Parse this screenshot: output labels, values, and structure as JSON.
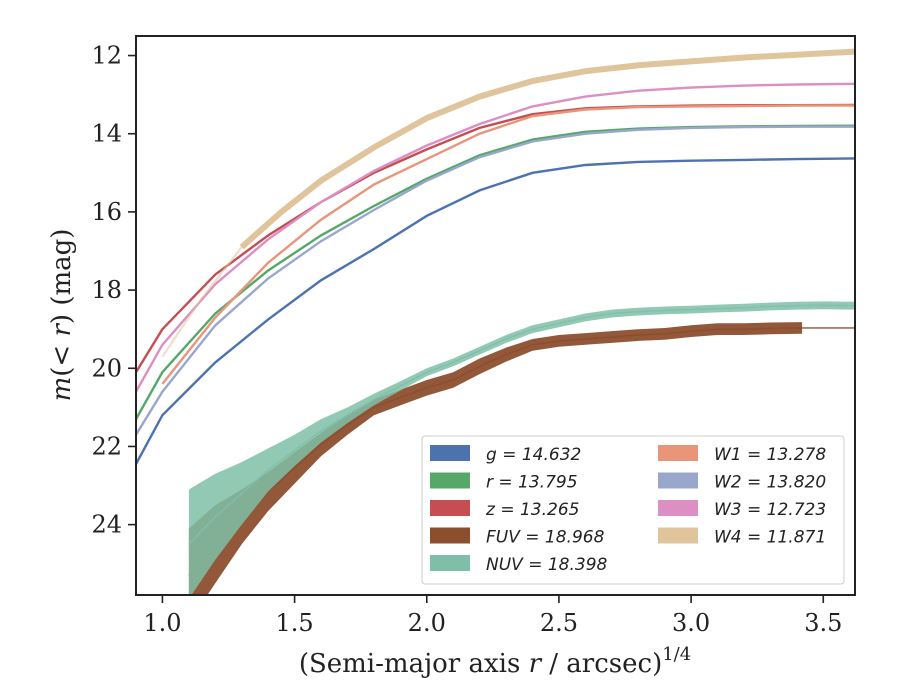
{
  "chart_data": {
    "type": "line",
    "xlabel": "(Semi-major axis r / arcsec)^1/4",
    "ylabel": "m(< r) (mag)",
    "xlim": [
      0.9,
      3.62
    ],
    "ylim": [
      25.8,
      11.5
    ],
    "y_inverted": true,
    "xticks": [
      "1.0",
      "1.5",
      "2.0",
      "2.5",
      "3.0",
      "3.5"
    ],
    "yticks": [
      "12",
      "14",
      "16",
      "18",
      "20",
      "22",
      "24"
    ],
    "legend_position": "lower-right",
    "series": [
      {
        "name": "g = 14.632",
        "color": "#4c72b0",
        "x": [
          0.9,
          1.0,
          1.2,
          1.4,
          1.6,
          1.8,
          2.0,
          2.2,
          2.4,
          2.6,
          2.8,
          3.0,
          3.2,
          3.4,
          3.62
        ],
        "y": [
          22.45,
          21.2,
          19.85,
          18.75,
          17.75,
          16.95,
          16.1,
          15.45,
          15.0,
          14.8,
          14.72,
          14.69,
          14.67,
          14.65,
          14.632
        ]
      },
      {
        "name": "r = 13.795",
        "color": "#55a868",
        "x": [
          0.9,
          1.0,
          1.2,
          1.4,
          1.6,
          1.8,
          2.0,
          2.2,
          2.4,
          2.6,
          2.8,
          3.0,
          3.2,
          3.4,
          3.62
        ],
        "y": [
          21.3,
          20.1,
          18.6,
          17.5,
          16.6,
          15.85,
          15.15,
          14.55,
          14.15,
          13.95,
          13.87,
          13.83,
          13.81,
          13.8,
          13.795
        ]
      },
      {
        "name": "z = 13.265",
        "color": "#c44e52",
        "x": [
          0.9,
          1.0,
          1.2,
          1.4,
          1.6,
          1.8,
          2.0,
          2.2,
          2.4,
          2.6,
          2.8,
          3.0,
          3.2,
          3.4,
          3.62
        ],
        "y": [
          20.1,
          19.0,
          17.6,
          16.6,
          15.75,
          15.0,
          14.4,
          13.85,
          13.5,
          13.35,
          13.3,
          13.28,
          13.27,
          13.27,
          13.265
        ]
      },
      {
        "name": "FUV = 18.968",
        "color": "#8c4f2e",
        "x": [
          1.1,
          1.2,
          1.3,
          1.4,
          1.5,
          1.6,
          1.7,
          1.8,
          1.9,
          2.0,
          2.1,
          2.2,
          2.3,
          2.4,
          2.5,
          2.6,
          2.7,
          2.8,
          2.9,
          3.0,
          3.1,
          3.2,
          3.3,
          3.42
        ],
        "y": [
          25.3,
          24.5,
          23.8,
          23.15,
          22.55,
          21.95,
          21.45,
          21.0,
          20.75,
          20.5,
          20.3,
          19.95,
          19.65,
          19.4,
          19.3,
          19.25,
          19.2,
          19.15,
          19.12,
          19.05,
          19.0,
          19.0,
          18.98,
          18.968
        ],
        "y_err": [
          1.2,
          1.0,
          0.7,
          0.5,
          0.4,
          0.3,
          0.25,
          0.2,
          0.2,
          0.2,
          0.2,
          0.2,
          0.18,
          0.15,
          0.15,
          0.15,
          0.15,
          0.15,
          0.15,
          0.15,
          0.15,
          0.15,
          0.15,
          0.15
        ],
        "extrapolation": {
          "x": [
            3.42,
            3.62
          ],
          "y": [
            18.968,
            18.968
          ]
        }
      },
      {
        "name": "NUV = 18.398",
        "color": "#7fbfa8",
        "x": [
          1.1,
          1.2,
          1.3,
          1.4,
          1.5,
          1.6,
          1.7,
          1.8,
          1.9,
          2.0,
          2.1,
          2.2,
          2.3,
          2.4,
          2.5,
          2.6,
          2.7,
          2.8,
          2.9,
          3.0,
          3.1,
          3.2,
          3.3,
          3.4,
          3.5,
          3.62
        ],
        "y": [
          24.5,
          23.8,
          23.2,
          22.6,
          22.1,
          21.6,
          21.2,
          20.8,
          20.45,
          20.1,
          19.85,
          19.55,
          19.25,
          19.0,
          18.85,
          18.7,
          18.6,
          18.55,
          18.52,
          18.5,
          18.47,
          18.45,
          18.42,
          18.4,
          18.39,
          18.398
        ],
        "y_err": [
          1.4,
          1.1,
          0.8,
          0.55,
          0.4,
          0.3,
          0.2,
          0.15,
          0.12,
          0.1,
          0.1,
          0.1,
          0.1,
          0.1,
          0.1,
          0.1,
          0.1,
          0.1,
          0.1,
          0.1,
          0.1,
          0.1,
          0.1,
          0.1,
          0.1,
          0.1
        ]
      },
      {
        "name": "W1 = 13.278",
        "color": "#e8957a",
        "x": [
          1.0,
          1.2,
          1.4,
          1.6,
          1.8,
          2.0,
          2.2,
          2.4,
          2.6,
          2.8,
          3.0,
          3.2,
          3.4,
          3.62
        ],
        "y": [
          20.4,
          18.7,
          17.3,
          16.2,
          15.3,
          14.65,
          14.0,
          13.55,
          13.38,
          13.32,
          13.3,
          13.29,
          13.28,
          13.278
        ]
      },
      {
        "name": "W2 = 13.820",
        "color": "#9aa7cc",
        "x": [
          0.9,
          1.0,
          1.2,
          1.4,
          1.6,
          1.8,
          2.0,
          2.2,
          2.4,
          2.6,
          2.8,
          3.0,
          3.2,
          3.4,
          3.62
        ],
        "y": [
          21.7,
          20.6,
          18.9,
          17.7,
          16.75,
          15.95,
          15.2,
          14.6,
          14.2,
          14.0,
          13.9,
          13.85,
          13.83,
          13.82,
          13.82
        ]
      },
      {
        "name": "W3 = 12.723",
        "color": "#dd8fc4",
        "x": [
          0.9,
          1.0,
          1.2,
          1.4,
          1.6,
          1.8,
          2.0,
          2.2,
          2.4,
          2.6,
          2.8,
          3.0,
          3.2,
          3.4,
          3.62
        ],
        "y": [
          20.6,
          19.4,
          17.85,
          16.7,
          15.75,
          14.95,
          14.3,
          13.75,
          13.3,
          13.05,
          12.9,
          12.82,
          12.77,
          12.74,
          12.723
        ]
      },
      {
        "name": "W4 = 11.871",
        "color": "#dfc49c",
        "x": [
          1.0,
          1.15,
          1.3,
          1.45,
          1.6,
          1.8,
          2.0,
          2.2,
          2.4,
          2.6,
          2.8,
          3.0,
          3.2,
          3.4,
          3.62
        ],
        "y": [
          19.7,
          18.2,
          16.9,
          16.0,
          15.2,
          14.35,
          13.6,
          13.05,
          12.65,
          12.4,
          12.25,
          12.15,
          12.05,
          11.98,
          11.9
        ],
        "y_err": [
          0.05,
          0.05,
          0.08,
          0.1,
          0.1,
          0.1,
          0.1,
          0.08,
          0.08,
          0.08,
          0.08,
          0.08,
          0.08,
          0.08,
          0.08
        ],
        "faded_until_x": 1.3
      }
    ]
  },
  "legend": {
    "col1": [
      "g = 14.632",
      "r = 13.795",
      "z = 13.265",
      "FUV = 18.968",
      "NUV = 18.398"
    ],
    "col2": [
      "W1 = 13.278",
      "W2 = 13.820",
      "W3 = 12.723",
      "W4 = 11.871"
    ]
  }
}
